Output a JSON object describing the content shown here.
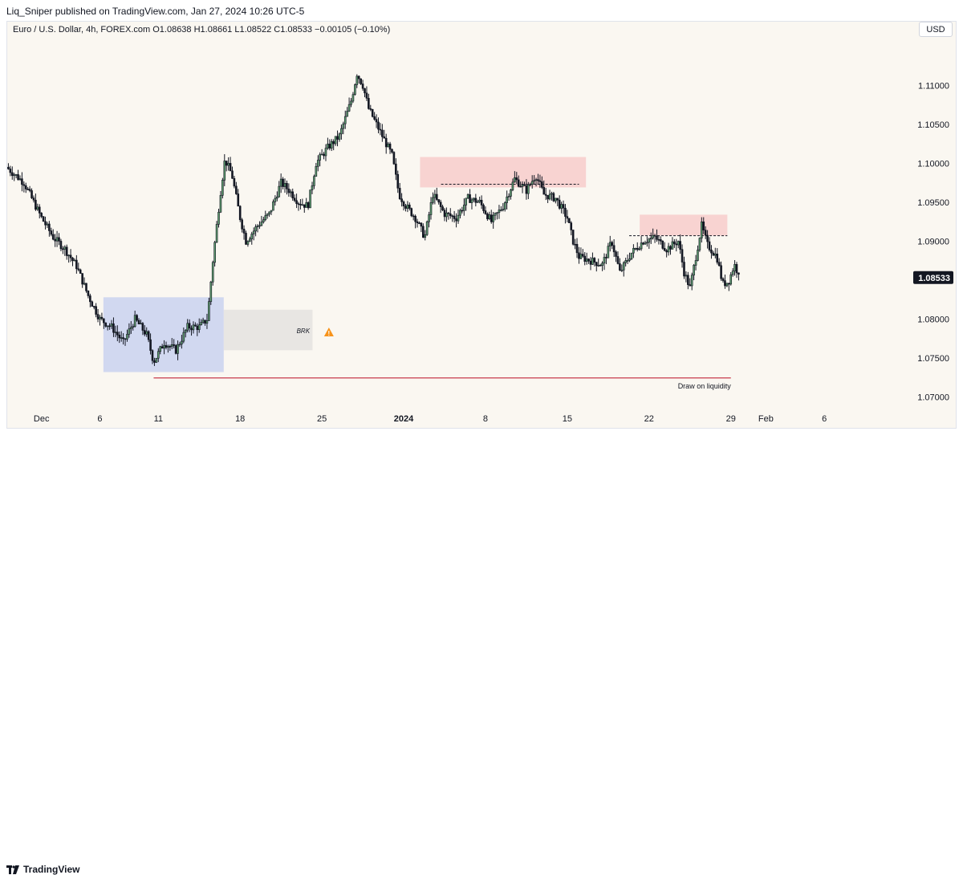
{
  "header": {
    "publisher_line": "Liq_Sniper published on TradingView.com, Jan 27, 2024 10:26 UTC-5"
  },
  "legend": {
    "text": "Euro / U.S. Dollar, 4h, FOREX.com O1.08638 H1.08661 L1.08522 C1.08533 −0.00105 (−0.10%)"
  },
  "toolbar": {
    "currency": "USD"
  },
  "footer": {
    "brand": "TradingView"
  },
  "colors": {
    "background": "#faf7f1",
    "up_candle": "#5d9c6e",
    "down_candle": "#131722",
    "supply_zone": "#f8c9c9",
    "demand_zone": "#c7cff0",
    "breaker_zone": "#e2e0de",
    "liquidity_line": "#c2263a",
    "warning_icon": "#f7931a",
    "price_label_bg": "#131722"
  },
  "chart_data": {
    "type": "candlestick",
    "symbol": "Euro / U.S. Dollar",
    "timeframe": "4h",
    "last_price": "1.08533",
    "ylim": [
      1.068,
      1.116
    ],
    "y_ticks": [
      "1.11000",
      "1.10500",
      "1.10000",
      "1.09500",
      "1.09000",
      "1.08500",
      "1.08000",
      "1.07500",
      "1.07000"
    ],
    "x_ticks": [
      {
        "label": "Dec",
        "day": 0
      },
      {
        "label": "6",
        "day": 5
      },
      {
        "label": "11",
        "day": 10
      },
      {
        "label": "18",
        "day": 17
      },
      {
        "label": "25",
        "day": 24
      },
      {
        "label": "2024",
        "day": 31
      },
      {
        "label": "8",
        "day": 38
      },
      {
        "label": "15",
        "day": 45
      },
      {
        "label": "22",
        "day": 52
      },
      {
        "label": "29",
        "day": 59
      },
      {
        "label": "Feb",
        "day": 62
      },
      {
        "label": "6",
        "day": 67
      }
    ],
    "x_range_days": [
      -3,
      72
    ],
    "anchors": [
      {
        "day": -3.0,
        "price": 1.0995
      },
      {
        "day": -1.5,
        "price": 1.0975
      },
      {
        "day": 0.0,
        "price": 1.093
      },
      {
        "day": 1.0,
        "price": 1.0905
      },
      {
        "day": 2.0,
        "price": 1.089
      },
      {
        "day": 3.0,
        "price": 1.0868
      },
      {
        "day": 4.0,
        "price": 1.083
      },
      {
        "day": 5.0,
        "price": 1.08
      },
      {
        "day": 6.0,
        "price": 1.079
      },
      {
        "day": 7.0,
        "price": 1.077
      },
      {
        "day": 8.0,
        "price": 1.08
      },
      {
        "day": 9.0,
        "price": 1.078
      },
      {
        "day": 9.6,
        "price": 1.0745
      },
      {
        "day": 10.5,
        "price": 1.077
      },
      {
        "day": 11.5,
        "price": 1.076
      },
      {
        "day": 12.5,
        "price": 1.079
      },
      {
        "day": 13.5,
        "price": 1.079
      },
      {
        "day": 14.2,
        "price": 1.08
      },
      {
        "day": 14.7,
        "price": 1.088
      },
      {
        "day": 15.3,
        "price": 1.096
      },
      {
        "day": 15.7,
        "price": 1.1005
      },
      {
        "day": 16.3,
        "price": 1.0985
      },
      {
        "day": 17.0,
        "price": 1.093
      },
      {
        "day": 17.5,
        "price": 1.09
      },
      {
        "day": 18.5,
        "price": 1.092
      },
      {
        "day": 19.5,
        "price": 1.0935
      },
      {
        "day": 20.5,
        "price": 1.0975
      },
      {
        "day": 21.2,
        "price": 1.0965
      },
      {
        "day": 22.0,
        "price": 1.095
      },
      {
        "day": 22.8,
        "price": 1.0945
      },
      {
        "day": 23.5,
        "price": 1.1
      },
      {
        "day": 24.5,
        "price": 1.102
      },
      {
        "day": 25.5,
        "price": 1.1035
      },
      {
        "day": 26.5,
        "price": 1.108
      },
      {
        "day": 27.0,
        "price": 1.1115
      },
      {
        "day": 27.5,
        "price": 1.11
      },
      {
        "day": 28.0,
        "price": 1.107
      },
      {
        "day": 29.0,
        "price": 1.104
      },
      {
        "day": 30.0,
        "price": 1.101
      },
      {
        "day": 30.6,
        "price": 1.096
      },
      {
        "day": 31.2,
        "price": 1.0945
      },
      {
        "day": 32.0,
        "price": 1.093
      },
      {
        "day": 32.8,
        "price": 1.0905
      },
      {
        "day": 33.5,
        "price": 1.096
      },
      {
        "day": 34.5,
        "price": 1.0935
      },
      {
        "day": 35.5,
        "price": 1.093
      },
      {
        "day": 36.5,
        "price": 1.0955
      },
      {
        "day": 37.5,
        "price": 1.095
      },
      {
        "day": 38.5,
        "price": 1.0925
      },
      {
        "day": 39.5,
        "price": 1.0945
      },
      {
        "day": 40.5,
        "price": 1.098
      },
      {
        "day": 41.5,
        "price": 1.0965
      },
      {
        "day": 42.3,
        "price": 1.0985
      },
      {
        "day": 43.0,
        "price": 1.096
      },
      {
        "day": 44.0,
        "price": 1.0955
      },
      {
        "day": 45.0,
        "price": 1.093
      },
      {
        "day": 45.5,
        "price": 1.09
      },
      {
        "day": 46.0,
        "price": 1.088
      },
      {
        "day": 47.0,
        "price": 1.0875
      },
      {
        "day": 48.0,
        "price": 1.087
      },
      {
        "day": 48.8,
        "price": 1.09
      },
      {
        "day": 49.5,
        "price": 1.086
      },
      {
        "day": 50.5,
        "price": 1.0885
      },
      {
        "day": 51.5,
        "price": 1.09
      },
      {
        "day": 52.5,
        "price": 1.0905
      },
      {
        "day": 53.5,
        "price": 1.089
      },
      {
        "day": 54.5,
        "price": 1.09
      },
      {
        "day": 55.0,
        "price": 1.086
      },
      {
        "day": 55.5,
        "price": 1.084
      },
      {
        "day": 56.5,
        "price": 1.092
      },
      {
        "day": 57.0,
        "price": 1.0895
      },
      {
        "day": 57.8,
        "price": 1.088
      },
      {
        "day": 58.3,
        "price": 1.0845
      },
      {
        "day": 58.8,
        "price": 1.0848
      },
      {
        "day": 59.3,
        "price": 1.087
      },
      {
        "day": 59.8,
        "price": 1.0853
      }
    ],
    "zones": [
      {
        "kind": "demand",
        "day_start": 5.3,
        "day_end": 15.6,
        "price_low": 1.0732,
        "price_high": 1.0828
      },
      {
        "kind": "breaker",
        "day_start": 15.6,
        "day_end": 23.2,
        "price_low": 1.076,
        "price_high": 1.0812
      },
      {
        "kind": "supply",
        "day_start": 32.4,
        "day_end": 46.6,
        "price_low": 1.0969,
        "price_high": 1.1008
      },
      {
        "kind": "supply",
        "day_start": 51.2,
        "day_end": 58.7,
        "price_low": 1.0907,
        "price_high": 1.0934
      }
    ],
    "levels": [
      {
        "kind": "dashed",
        "price": 1.0973,
        "day_start": 34.2,
        "day_end": 46.0
      },
      {
        "kind": "dashed",
        "price": 1.0907,
        "day_start": 50.3,
        "day_end": 58.7
      },
      {
        "kind": "liquidity",
        "price": 1.07245,
        "day_start": 9.6,
        "day_end": 59.0
      }
    ],
    "annotations": [
      {
        "text": "BRK",
        "day": 22.4,
        "price": 1.0786
      },
      {
        "text": "Draw on liquidity",
        "day": 59.0,
        "price": 1.0715
      }
    ],
    "grid": false,
    "legend": "none"
  }
}
